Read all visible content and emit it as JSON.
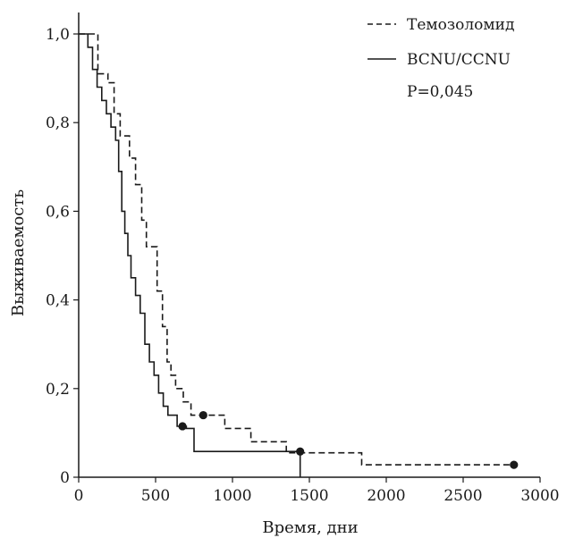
{
  "chart_data": {
    "type": "line",
    "title": "",
    "xlabel": "Время, дни",
    "ylabel": "Выживаемость",
    "xlim": [
      0,
      3000
    ],
    "ylim": [
      0,
      1.05
    ],
    "x_ticks": [
      0,
      500,
      1000,
      1500,
      2000,
      2500,
      3000
    ],
    "x_tick_labels": [
      "0",
      "500",
      "1000",
      "1500",
      "2000",
      "2500",
      "3000"
    ],
    "y_ticks": [
      0,
      0.2,
      0.4,
      0.6,
      0.8,
      1.0
    ],
    "y_tick_labels": [
      "0",
      "0,2",
      "0,4",
      "0,6",
      "0,8",
      "1,0"
    ],
    "grid": false,
    "legend_position": "top-right",
    "annotation": "P=0,045",
    "series": [
      {
        "name": "Темозоломид",
        "style": "dashed",
        "color": "#1a1a1a",
        "x": [
          0,
          100,
          125,
          190,
          230,
          270,
          330,
          370,
          410,
          440,
          470,
          510,
          545,
          575,
          600,
          630,
          680,
          730,
          800,
          950,
          1120,
          1350,
          1450,
          1840,
          2830
        ],
        "y": [
          1.0,
          1.0,
          0.91,
          0.89,
          0.82,
          0.77,
          0.72,
          0.66,
          0.58,
          0.52,
          0.52,
          0.42,
          0.34,
          0.26,
          0.23,
          0.2,
          0.17,
          0.14,
          0.14,
          0.11,
          0.08,
          0.055,
          0.055,
          0.028,
          0.028
        ],
        "censored": [
          {
            "x": 810,
            "y": 0.14
          },
          {
            "x": 1440,
            "y": 0.058
          },
          {
            "x": 2830,
            "y": 0.028
          }
        ]
      },
      {
        "name": "BCNU/CCNU",
        "style": "solid",
        "color": "#1a1a1a",
        "x": [
          0,
          60,
          90,
          120,
          150,
          180,
          210,
          240,
          260,
          280,
          300,
          320,
          340,
          370,
          400,
          430,
          460,
          490,
          520,
          550,
          580,
          640,
          700,
          750,
          1440,
          1440
        ],
        "y": [
          1.0,
          0.97,
          0.92,
          0.88,
          0.85,
          0.82,
          0.79,
          0.76,
          0.69,
          0.6,
          0.55,
          0.5,
          0.45,
          0.41,
          0.37,
          0.3,
          0.26,
          0.23,
          0.19,
          0.16,
          0.14,
          0.115,
          0.11,
          0.058,
          0.058,
          0.0
        ],
        "censored": [
          {
            "x": 675,
            "y": 0.115
          }
        ]
      }
    ]
  }
}
